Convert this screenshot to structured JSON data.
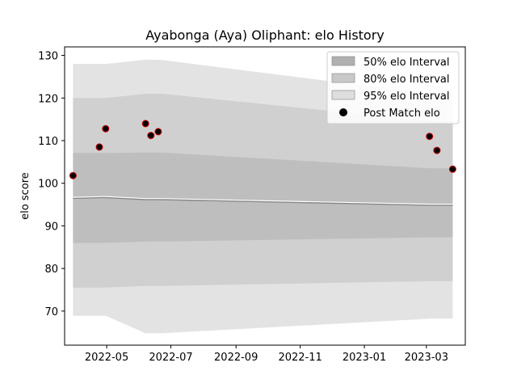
{
  "chart_data": {
    "type": "area",
    "title": "Ayabonga (Aya) Oliphant: elo History",
    "xlabel": "",
    "ylabel": "elo score",
    "x_ticks": [
      "2022-05",
      "2022-07",
      "2022-09",
      "2022-11",
      "2023-01",
      "2023-03"
    ],
    "y_ticks": [
      70,
      80,
      90,
      100,
      110,
      120,
      130
    ],
    "ylim": [
      62,
      132
    ],
    "xlim": [
      "2022-03-22",
      "2023-04-07"
    ],
    "grid": false,
    "legend_position": "top-right",
    "legend": [
      {
        "label": "50% elo Interval",
        "kind": "band50"
      },
      {
        "label": "80% elo Interval",
        "kind": "band80"
      },
      {
        "label": "95% elo Interval",
        "kind": "band95"
      },
      {
        "label": "Post Match elo",
        "kind": "marker"
      }
    ],
    "colors": {
      "band95": "#e3e3e3",
      "band80": "#d0d0d0",
      "band50": "#bebebe",
      "mean_line": "#ffffff",
      "marker_fill": "#000000",
      "marker_edge": "#cc0000"
    },
    "interval_series": {
      "dates": [
        "2022-03-30",
        "2022-04-30",
        "2022-06-07",
        "2022-06-23",
        "2023-03-04",
        "2023-03-26"
      ],
      "mean": [
        96.5,
        96.7,
        96.2,
        96.2,
        94.9,
        94.9
      ],
      "lo50": [
        86.0,
        86.0,
        86.3,
        86.3,
        87.3,
        87.3
      ],
      "hi50": [
        107.1,
        107.1,
        107.2,
        107.2,
        103.5,
        103.5
      ],
      "lo80": [
        75.5,
        75.5,
        75.9,
        75.9,
        77.0,
        77.0
      ],
      "hi80": [
        120.0,
        120.0,
        121.0,
        121.0,
        114.6,
        114.6
      ],
      "lo95": [
        68.9,
        68.9,
        64.8,
        64.8,
        68.2,
        68.2
      ],
      "hi95": [
        128.0,
        128.0,
        129.0,
        128.9,
        121.0,
        121.0
      ]
    },
    "points": [
      {
        "date": "2022-03-30",
        "elo": 101.8
      },
      {
        "date": "2022-04-24",
        "elo": 108.5
      },
      {
        "date": "2022-04-30",
        "elo": 112.8
      },
      {
        "date": "2022-06-07",
        "elo": 114.0
      },
      {
        "date": "2022-06-12",
        "elo": 111.2
      },
      {
        "date": "2022-06-19",
        "elo": 112.1
      },
      {
        "date": "2023-03-04",
        "elo": 111.0
      },
      {
        "date": "2023-03-11",
        "elo": 107.7
      },
      {
        "date": "2023-03-26",
        "elo": 103.3
      }
    ]
  }
}
